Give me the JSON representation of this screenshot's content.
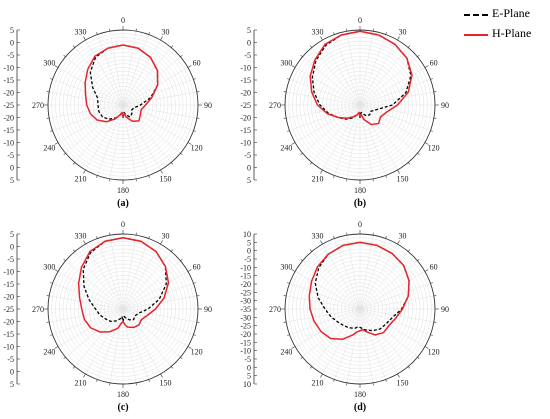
{
  "legend": {
    "e_label": "E-Plane",
    "h_label": "H-Plane",
    "e_color": "#000000",
    "h_color": "#e8242a"
  },
  "chart_data": [
    {
      "type": "polar-line",
      "caption": "(a)",
      "r_range": [
        -25,
        5
      ],
      "r_ticks": [
        5,
        0,
        -5,
        -10,
        -15,
        -20,
        -25,
        -20,
        -15,
        -10,
        -5,
        0,
        5
      ],
      "angle_ticks": [
        0,
        30,
        60,
        90,
        120,
        150,
        180,
        210,
        240,
        270,
        300,
        330
      ],
      "angle_unit": "deg",
      "series": [
        {
          "name": "E-Plane",
          "style": "dashed",
          "color": "#000000",
          "theta": [
            0,
            15,
            30,
            45,
            60,
            75,
            90,
            105,
            120,
            135,
            150,
            165,
            172,
            180,
            188,
            195,
            210,
            225,
            240,
            255,
            270,
            285,
            300,
            315,
            330,
            345
          ],
          "r": [
            -1,
            -1.5,
            -3,
            -5.5,
            -9,
            -13.5,
            -18,
            -20.5,
            -21,
            -20,
            -19.5,
            -21,
            -22,
            -20,
            -22,
            -21,
            -19,
            -17,
            -15.5,
            -15,
            -15,
            -14.5,
            -11,
            -6.5,
            -3,
            -1.5
          ]
        },
        {
          "name": "H-Plane",
          "style": "solid",
          "color": "#e8242a",
          "theta": [
            0,
            15,
            30,
            45,
            60,
            75,
            90,
            105,
            120,
            135,
            150,
            165,
            172,
            180,
            188,
            195,
            210,
            225,
            240,
            255,
            270,
            285,
            300,
            315,
            330,
            345
          ],
          "r": [
            -1,
            -1.5,
            -3,
            -5.5,
            -9,
            -13,
            -16,
            -17.5,
            -17,
            -16,
            -17.5,
            -20,
            -21.5,
            -20.5,
            -22,
            -21,
            -18.5,
            -15.5,
            -13,
            -11.5,
            -10.5,
            -9.5,
            -7.5,
            -5,
            -2.5,
            -1.5
          ]
        }
      ]
    },
    {
      "type": "polar-line",
      "caption": "(b)",
      "r_range": [
        -25,
        5
      ],
      "r_ticks": [
        5,
        0,
        -5,
        -10,
        -15,
        -20,
        -25,
        -20,
        -15,
        -10,
        -5,
        0,
        5
      ],
      "angle_ticks": [
        0,
        30,
        60,
        90,
        120,
        150,
        180,
        210,
        240,
        270,
        300,
        330
      ],
      "angle_unit": "deg",
      "series": [
        {
          "name": "E-Plane",
          "style": "dashed",
          "color": "#000000",
          "theta": [
            0,
            15,
            30,
            45,
            60,
            75,
            90,
            105,
            120,
            135,
            150,
            165,
            172,
            180,
            188,
            195,
            210,
            225,
            240,
            255,
            270,
            285,
            300,
            315,
            330,
            345
          ],
          "r": [
            4.5,
            4,
            3,
            1.5,
            -1.5,
            -6,
            -12,
            -18,
            -20,
            -19.5,
            -20,
            -21.5,
            -22,
            -20,
            -22,
            -21,
            -19,
            -17,
            -15,
            -12,
            -9,
            -6,
            -3,
            0,
            2.5,
            4
          ]
        },
        {
          "name": "H-Plane",
          "style": "solid",
          "color": "#e8242a",
          "theta": [
            0,
            15,
            30,
            45,
            60,
            75,
            90,
            105,
            120,
            135,
            150,
            165,
            172,
            180,
            188,
            195,
            210,
            225,
            240,
            255,
            270,
            285,
            300,
            315,
            330,
            345
          ],
          "r": [
            4.5,
            4,
            3,
            1.5,
            -1,
            -5,
            -10,
            -14,
            -15.5,
            -14.5,
            -16,
            -19,
            -21,
            -20.5,
            -22,
            -21,
            -19.5,
            -17.5,
            -15,
            -11.5,
            -8,
            -5,
            -2,
            0.5,
            3,
            4
          ]
        }
      ]
    },
    {
      "type": "polar-line",
      "caption": "(c)",
      "r_range": [
        -25,
        5
      ],
      "r_ticks": [
        5,
        0,
        -5,
        -10,
        -15,
        -20,
        -25,
        -20,
        -15,
        -10,
        -5,
        0,
        5
      ],
      "angle_ticks": [
        0,
        30,
        60,
        90,
        120,
        150,
        180,
        210,
        240,
        270,
        300,
        330
      ],
      "angle_unit": "deg",
      "series": [
        {
          "name": "E-Plane",
          "style": "dashed",
          "color": "#000000",
          "theta": [
            0,
            15,
            30,
            45,
            60,
            75,
            90,
            105,
            120,
            135,
            150,
            165,
            172,
            180,
            188,
            195,
            210,
            225,
            240,
            255,
            270,
            285,
            300,
            315,
            330,
            345
          ],
          "r": [
            3.5,
            3,
            1.5,
            -1,
            -5,
            -10,
            -15,
            -18.5,
            -19.5,
            -19,
            -20,
            -21.5,
            -22,
            -20,
            -22,
            -21,
            -19.5,
            -18,
            -17,
            -15.5,
            -14,
            -11,
            -7,
            -2.5,
            1,
            3
          ]
        },
        {
          "name": "H-Plane",
          "style": "solid",
          "color": "#e8242a",
          "theta": [
            0,
            15,
            30,
            45,
            60,
            75,
            90,
            105,
            120,
            135,
            150,
            165,
            172,
            180,
            188,
            195,
            210,
            225,
            240,
            255,
            270,
            285,
            300,
            315,
            330,
            345
          ],
          "r": [
            3.5,
            3,
            1.5,
            -1,
            -4,
            -8,
            -12,
            -15,
            -16.5,
            -16,
            -16.5,
            -17.5,
            -18.5,
            -20,
            -19,
            -17,
            -14.5,
            -12,
            -10,
            -9,
            -8.5,
            -7,
            -4.5,
            -1.5,
            1.5,
            3
          ]
        }
      ]
    },
    {
      "type": "polar-line",
      "caption": "(d)",
      "r_range": [
        -35,
        10
      ],
      "r_ticks": [
        10,
        5,
        0,
        -5,
        -10,
        -15,
        -20,
        -25,
        -30,
        -35,
        -30,
        -25,
        -20,
        -15,
        -10,
        -5,
        0,
        5,
        10
      ],
      "angle_ticks": [
        0,
        30,
        60,
        90,
        120,
        150,
        180,
        210,
        240,
        270,
        300,
        330
      ],
      "angle_unit": "deg",
      "series": [
        {
          "name": "E-Plane",
          "style": "dashed",
          "color": "#000000",
          "theta": [
            0,
            15,
            30,
            45,
            60,
            75,
            90,
            105,
            120,
            135,
            150,
            165,
            172,
            180,
            188,
            195,
            210,
            225,
            240,
            255,
            270,
            285,
            300,
            315,
            330,
            345
          ],
          "r": [
            5,
            4.5,
            3.5,
            2,
            -1,
            -5,
            -10,
            -15,
            -17,
            -18,
            -20,
            -22,
            -23,
            -24,
            -24,
            -23,
            -22,
            -21,
            -19.5,
            -17,
            -14,
            -9,
            -4,
            0,
            3,
            4.5
          ]
        },
        {
          "name": "H-Plane",
          "style": "solid",
          "color": "#e8242a",
          "theta": [
            0,
            15,
            30,
            45,
            60,
            75,
            90,
            105,
            120,
            135,
            150,
            165,
            172,
            180,
            188,
            195,
            210,
            225,
            240,
            255,
            270,
            285,
            300,
            315,
            330,
            345
          ],
          "r": [
            5,
            4.5,
            3.5,
            2,
            -1,
            -5,
            -9.5,
            -13,
            -15,
            -15,
            -17,
            -21,
            -22.5,
            -22,
            -21,
            -19,
            -14,
            -10,
            -8,
            -6.5,
            -5,
            -3.5,
            -1.5,
            1,
            3,
            4.5
          ]
        }
      ]
    }
  ]
}
